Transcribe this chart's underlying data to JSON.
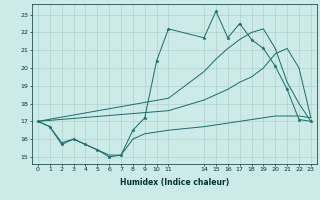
{
  "xlabel": "Humidex (Indice chaleur)",
  "bg_color": "#cceae8",
  "grid_color": "#aaccca",
  "line_color": "#1a6b6b",
  "xlim": [
    -0.5,
    23.5
  ],
  "ylim": [
    14.6,
    23.6
  ],
  "xticks": [
    0,
    1,
    2,
    3,
    4,
    5,
    6,
    7,
    8,
    9,
    10,
    11,
    14,
    15,
    16,
    17,
    18,
    19,
    20,
    21,
    22,
    23
  ],
  "yticks": [
    15,
    16,
    17,
    18,
    19,
    20,
    21,
    22,
    23
  ],
  "line1_x": [
    0,
    1,
    2,
    3,
    4,
    5,
    6,
    7,
    8,
    9,
    10,
    11,
    14,
    15,
    16,
    17,
    18,
    19,
    20,
    21,
    22,
    23
  ],
  "line1_y": [
    17.0,
    16.7,
    15.7,
    16.0,
    15.7,
    15.4,
    15.0,
    15.1,
    16.5,
    17.2,
    20.4,
    22.2,
    21.7,
    23.2,
    21.7,
    22.5,
    21.6,
    21.1,
    20.1,
    18.8,
    17.1,
    17.0
  ],
  "line2_x": [
    0,
    1,
    2,
    3,
    4,
    5,
    6,
    7,
    8,
    9,
    10,
    11,
    14,
    15,
    16,
    17,
    18,
    19,
    20,
    21,
    22,
    23
  ],
  "line2_y": [
    17.0,
    16.7,
    15.8,
    16.0,
    15.7,
    15.4,
    15.1,
    15.1,
    16.0,
    16.3,
    16.4,
    16.5,
    16.7,
    16.8,
    16.9,
    17.0,
    17.1,
    17.2,
    17.3,
    17.3,
    17.3,
    17.2
  ],
  "line3_x": [
    0,
    11,
    14,
    15,
    16,
    17,
    18,
    19,
    20,
    21,
    22,
    23
  ],
  "line3_y": [
    17.0,
    18.3,
    19.8,
    20.5,
    21.1,
    21.6,
    22.0,
    22.2,
    21.1,
    19.2,
    18.0,
    17.0
  ],
  "line4_x": [
    0,
    11,
    14,
    15,
    16,
    17,
    18,
    19,
    20,
    21,
    22,
    23
  ],
  "line4_y": [
    17.0,
    17.6,
    18.2,
    18.5,
    18.8,
    19.2,
    19.5,
    20.0,
    20.8,
    21.1,
    20.0,
    17.2
  ]
}
